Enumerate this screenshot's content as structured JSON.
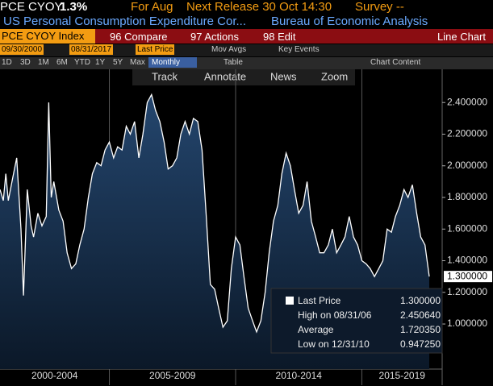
{
  "header": {
    "ticker": "PCE CYOY",
    "last": "1.3%",
    "period": "For Aug",
    "next_release": "Next Release 30 Oct 14:30",
    "survey": "Survey --",
    "description": "US Personal Consumption Expenditure Cor...",
    "source": "Bureau of Economic Analysis"
  },
  "menu": {
    "security": "PCE CYOY Index",
    "compare": "96 Compare",
    "actions": "97 Actions",
    "edit": "98 Edit",
    "view": "Line Chart"
  },
  "controls": {
    "start_date": "09/30/2000",
    "end_date": "08/31/2017",
    "field": "Last Price",
    "mov_avgs": "Mov Avgs",
    "key_events": "Key Events",
    "periods": [
      "1D",
      "3D",
      "1M",
      "6M",
      "YTD",
      "1Y",
      "5Y",
      "Max"
    ],
    "frequency": "Monthly",
    "table": "Table",
    "chart_content": "Chart Content"
  },
  "toolbar": [
    "Track",
    "Annotate",
    "News",
    "Zoom"
  ],
  "chart_data": {
    "type": "area",
    "color": "#ffffff",
    "x": [
      2000.67,
      2000.8,
      2000.9,
      2001.0,
      2001.17,
      2001.33,
      2001.5,
      2001.6,
      2001.75,
      2001.9,
      2002.0,
      2002.17,
      2002.33,
      2002.5,
      2002.6,
      2002.7,
      2002.8,
      2003.0,
      2003.17,
      2003.33,
      2003.5,
      2003.67,
      2003.83,
      2004.0,
      2004.17,
      2004.33,
      2004.5,
      2004.67,
      2004.83,
      2005.0,
      2005.17,
      2005.33,
      2005.5,
      2005.67,
      2005.83,
      2006.0,
      2006.17,
      2006.33,
      2006.5,
      2006.67,
      2006.83,
      2007.0,
      2007.17,
      2007.33,
      2007.5,
      2007.67,
      2007.83,
      2008.0,
      2008.17,
      2008.33,
      2008.5,
      2008.67,
      2008.83,
      2009.0,
      2009.17,
      2009.33,
      2009.5,
      2009.67,
      2009.83,
      2010.0,
      2010.17,
      2010.33,
      2010.5,
      2010.67,
      2010.83,
      2011.0,
      2011.17,
      2011.33,
      2011.5,
      2011.67,
      2011.83,
      2012.0,
      2012.17,
      2012.33,
      2012.5,
      2012.67,
      2012.83,
      2013.0,
      2013.17,
      2013.33,
      2013.5,
      2013.67,
      2013.83,
      2014.0,
      2014.17,
      2014.33,
      2014.5,
      2014.67,
      2014.83,
      2015.0,
      2015.17,
      2015.33,
      2015.5,
      2015.67,
      2015.83,
      2016.0,
      2016.17,
      2016.33,
      2016.5,
      2016.67,
      2016.83,
      2017.0,
      2017.17,
      2017.33,
      2017.5,
      2017.67
    ],
    "values": [
      1.85,
      1.78,
      1.95,
      1.78,
      1.92,
      2.05,
      1.6,
      1.18,
      1.85,
      1.62,
      1.55,
      1.7,
      1.62,
      1.68,
      2.4,
      1.8,
      1.9,
      1.72,
      1.65,
      1.45,
      1.35,
      1.38,
      1.5,
      1.6,
      1.8,
      1.95,
      2.02,
      2.0,
      2.1,
      2.15,
      2.05,
      2.12,
      2.1,
      2.25,
      2.2,
      2.28,
      2.05,
      2.2,
      2.4,
      2.45,
      2.35,
      2.28,
      2.15,
      1.98,
      2.0,
      2.05,
      2.2,
      2.28,
      2.2,
      2.3,
      2.28,
      2.1,
      1.7,
      1.25,
      1.22,
      1.1,
      0.98,
      1.02,
      1.35,
      1.55,
      1.5,
      1.3,
      1.1,
      1.02,
      0.95,
      1.02,
      1.2,
      1.45,
      1.65,
      1.75,
      1.95,
      2.08,
      2.0,
      1.85,
      1.7,
      1.75,
      1.9,
      1.65,
      1.55,
      1.45,
      1.45,
      1.5,
      1.6,
      1.45,
      1.5,
      1.55,
      1.68,
      1.55,
      1.5,
      1.4,
      1.38,
      1.35,
      1.3,
      1.35,
      1.4,
      1.6,
      1.58,
      1.68,
      1.75,
      1.85,
      1.8,
      1.88,
      1.7,
      1.55,
      1.5,
      1.3
    ],
    "xlim": [
      2000.67,
      2018.18
    ],
    "ylim": [
      0.715,
      2.61
    ],
    "yticks": [
      {
        "value": 2.4,
        "label": "2.400000"
      },
      {
        "value": 2.2,
        "label": "2.200000"
      },
      {
        "value": 2.0,
        "label": "2.000000"
      },
      {
        "value": 1.8,
        "label": "1.800000"
      },
      {
        "value": 1.6,
        "label": "1.600000"
      },
      {
        "value": 1.4,
        "label": "1.400000"
      },
      {
        "value": 1.2,
        "label": "1.200000"
      },
      {
        "value": 1.0,
        "label": "1.000000"
      }
    ],
    "x_bands": [
      {
        "from": 2000,
        "to": 2005,
        "label": "2000-2004"
      },
      {
        "from": 2005,
        "to": 2010,
        "label": "2005-2009"
      },
      {
        "from": 2010,
        "to": 2015,
        "label": "2010-2014"
      },
      {
        "from": 2015,
        "to": 2020,
        "label": "2015-2019"
      }
    ],
    "legend": [
      {
        "label": "Last Price",
        "value": "1.300000"
      },
      {
        "label": "High on 08/31/06",
        "value": "2.450640"
      },
      {
        "label": "Average",
        "value": "1.720350"
      },
      {
        "label": "Low on 12/31/10",
        "value": "0.947250"
      }
    ]
  }
}
